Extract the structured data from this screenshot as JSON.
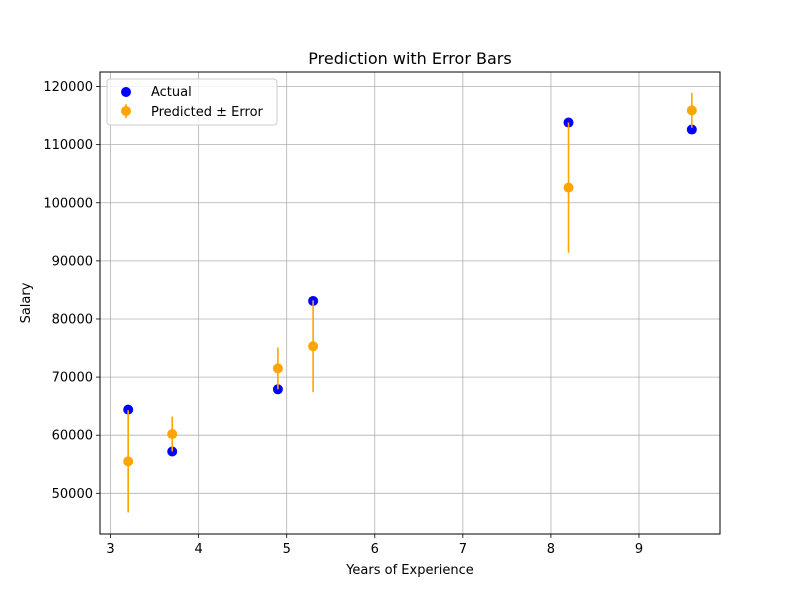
{
  "chart_data": {
    "type": "scatter",
    "title": "Prediction with Error Bars",
    "xlabel": "Years of Experience",
    "ylabel": "Salary",
    "xlim": [
      2.88,
      9.92
    ],
    "ylim": [
      43000,
      122500
    ],
    "xticks": [
      3,
      4,
      5,
      6,
      7,
      8,
      9
    ],
    "yticks": [
      50000,
      60000,
      70000,
      80000,
      90000,
      100000,
      110000,
      120000
    ],
    "grid": true,
    "legend_position": "top-left",
    "series": [
      {
        "name": "Actual",
        "kind": "scatter",
        "color": "#0000ff",
        "x": [
          3.2,
          3.7,
          4.9,
          5.3,
          8.2,
          9.6
        ],
        "y": [
          64400,
          57200,
          67900,
          83100,
          113800,
          112600
        ]
      },
      {
        "name": "Predicted ± Error",
        "kind": "errorbar",
        "color": "#ffa500",
        "x": [
          3.2,
          3.7,
          4.9,
          5.3,
          8.2,
          9.6
        ],
        "y": [
          55500,
          60200,
          71500,
          75300,
          102600,
          115900
        ],
        "err": [
          8800,
          3000,
          3600,
          7900,
          11200,
          3000
        ]
      }
    ]
  }
}
